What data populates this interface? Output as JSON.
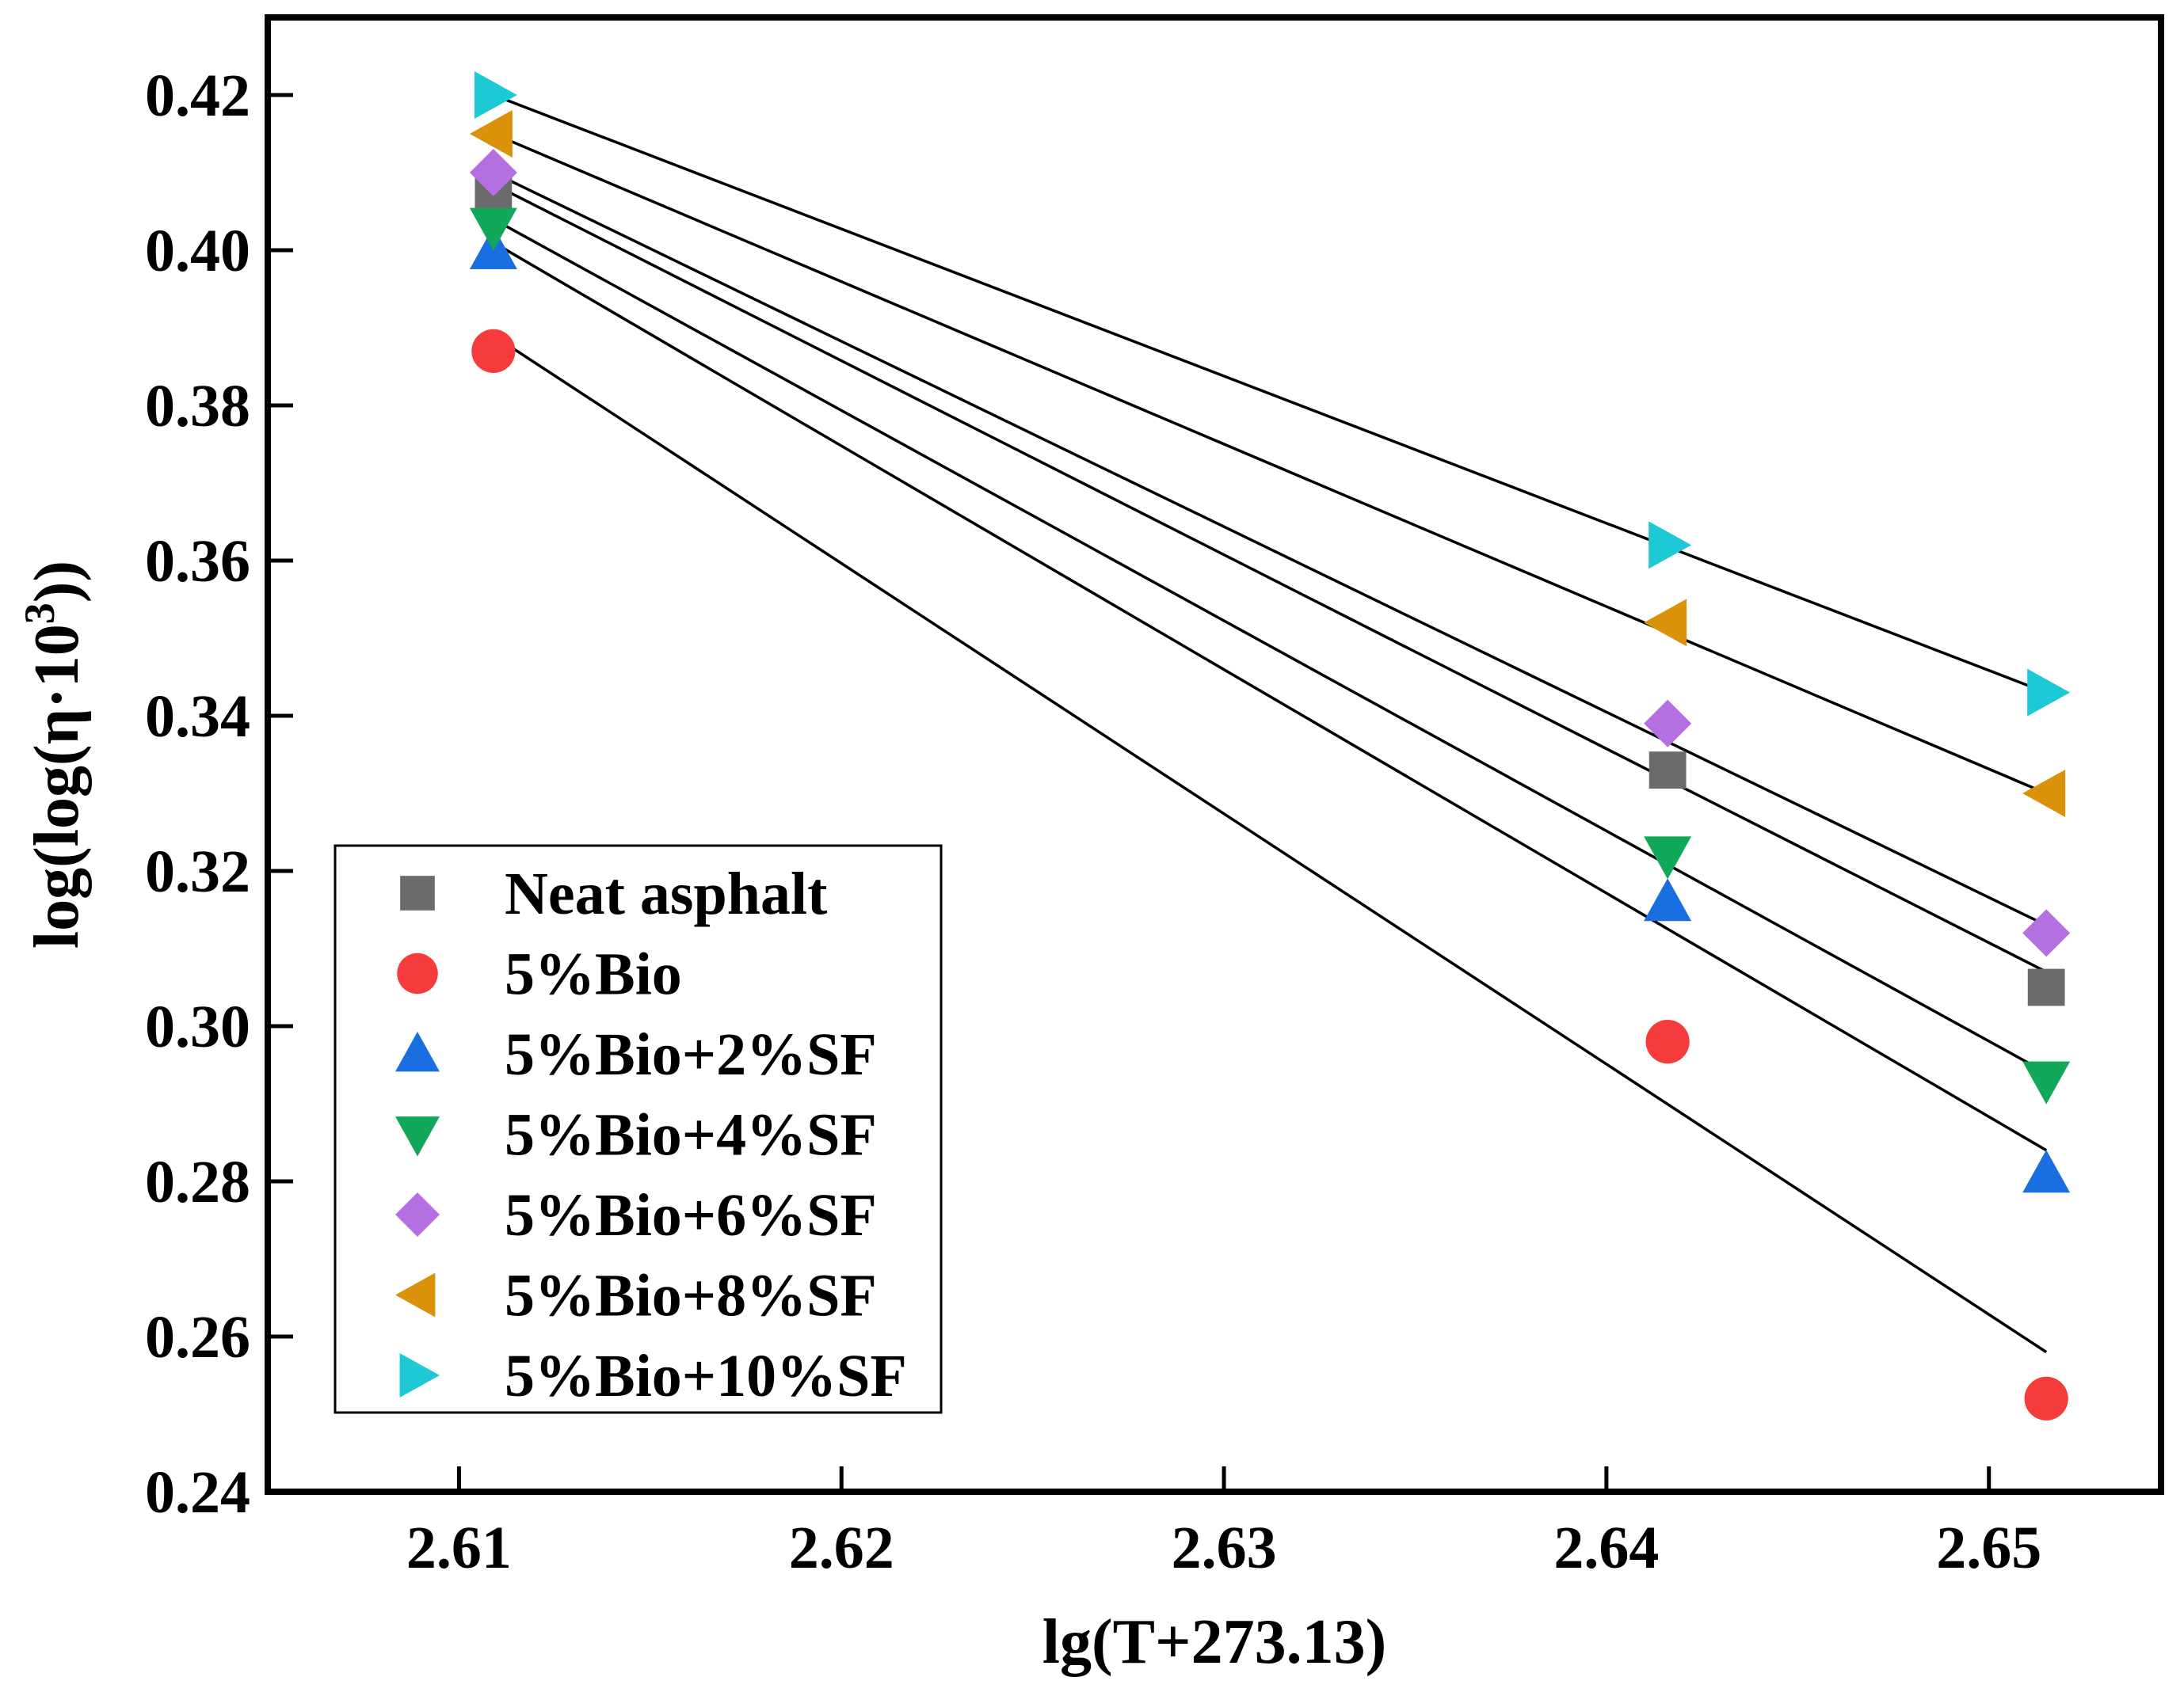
{
  "chart_data": {
    "type": "scatter",
    "title": "",
    "xlabel": "lg(T+273.13)",
    "ylabel_prefix": "log(log(η·10",
    "ylabel_sup": "3",
    "ylabel_suffix": "))",
    "xlim": [
      2.605,
      2.6545
    ],
    "ylim": [
      0.24,
      0.43
    ],
    "x_ticks": [
      "2.61",
      "2.62",
      "2.63",
      "2.64",
      "2.65"
    ],
    "y_ticks": [
      "0.24",
      "0.26",
      "0.28",
      "0.30",
      "0.32",
      "0.34",
      "0.36",
      "0.38",
      "0.40",
      "0.42"
    ],
    "grid": false,
    "legend_position": "bottom-left",
    "x": [
      2.6109,
      2.6416,
      2.6515
    ],
    "series": [
      {
        "name": "Neat asphalt",
        "marker": "square",
        "color": "#6b6b6b",
        "values": [
          0.407,
          0.333,
          0.305
        ],
        "fit": [
          0.4085,
          0.307
        ]
      },
      {
        "name": "5%Bio",
        "marker": "circle",
        "color": "#f53b3b",
        "values": [
          0.387,
          0.298,
          0.252
        ],
        "fit": [
          0.389,
          0.258
        ]
      },
      {
        "name": "5%Bio+2%SF",
        "marker": "triangle-up",
        "color": "#1a6fe0",
        "values": [
          0.4,
          0.316,
          0.281
        ],
        "fit": [
          0.401,
          0.284
        ]
      },
      {
        "name": "5%Bio+4%SF",
        "marker": "triangle-down",
        "color": "#12a85a",
        "values": [
          0.403,
          0.322,
          0.293
        ],
        "fit": [
          0.404,
          0.294
        ]
      },
      {
        "name": "5%Bio+6%SF",
        "marker": "diamond",
        "color": "#b46fe0",
        "values": [
          0.41,
          0.339,
          0.312
        ],
        "fit": [
          0.41,
          0.313
        ]
      },
      {
        "name": "5%Bio+8%SF",
        "marker": "triangle-left",
        "color": "#d9920a",
        "values": [
          0.415,
          0.352,
          0.33
        ],
        "fit": [
          0.415,
          0.33
        ]
      },
      {
        "name": "5%Bio+10%SF",
        "marker": "triangle-right",
        "color": "#1ec9d6",
        "values": [
          0.42,
          0.362,
          0.343
        ],
        "fit": [
          0.42,
          0.343
        ]
      }
    ]
  }
}
